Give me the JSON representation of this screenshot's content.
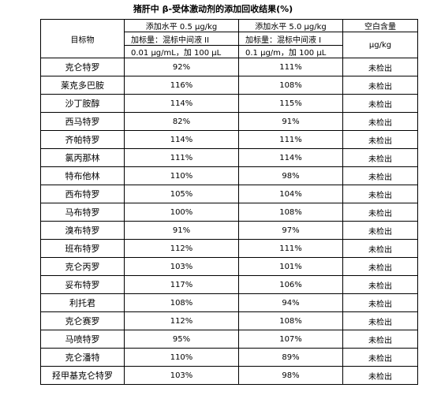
{
  "title": "猪肝中 β-受体激动剂的添加回收结果(%)",
  "header": {
    "target_label": "目标物",
    "group1_level": "添加水平 0.5 μg/kg",
    "group1_spike": "加标量：混标中间液 II",
    "group1_conc": "0.01 μg/mL，加 100 μL",
    "group2_level": "添加水平 5.0 μg/kg",
    "group2_spike": "加标量：混标中间液 I",
    "group2_conc": "0.1 μg/m，加 100 μL",
    "blank_label": "空白含量",
    "blank_unit": "μg/kg"
  },
  "rows": [
    {
      "name": "克仑特罗",
      "r1": "92%",
      "r2": "111%",
      "blank": "未检出"
    },
    {
      "name": "莱克多巴胺",
      "r1": "116%",
      "r2": "108%",
      "blank": "未检出"
    },
    {
      "name": "沙丁胺醇",
      "r1": "114%",
      "r2": "115%",
      "blank": "未检出"
    },
    {
      "name": "西马特罗",
      "r1": "82%",
      "r2": "91%",
      "blank": "未检出"
    },
    {
      "name": "齐帕特罗",
      "r1": "114%",
      "r2": "111%",
      "blank": "未检出"
    },
    {
      "name": "氯丙那林",
      "r1": "111%",
      "r2": "114%",
      "blank": "未检出"
    },
    {
      "name": "特布他林",
      "r1": "110%",
      "r2": "98%",
      "blank": "未检出"
    },
    {
      "name": "西布特罗",
      "r1": "105%",
      "r2": "104%",
      "blank": "未检出"
    },
    {
      "name": "马布特罗",
      "r1": "100%",
      "r2": "108%",
      "blank": "未检出"
    },
    {
      "name": "溴布特罗",
      "r1": "91%",
      "r2": "97%",
      "blank": "未检出"
    },
    {
      "name": "班布特罗",
      "r1": "112%",
      "r2": "111%",
      "blank": "未检出"
    },
    {
      "name": "克仑丙罗",
      "r1": "103%",
      "r2": "101%",
      "blank": "未检出"
    },
    {
      "name": "妥布特罗",
      "r1": "117%",
      "r2": "106%",
      "blank": "未检出"
    },
    {
      "name": "利托君",
      "r1": "108%",
      "r2": "94%",
      "blank": "未检出"
    },
    {
      "name": "克仑赛罗",
      "r1": "112%",
      "r2": "108%",
      "blank": "未检出"
    },
    {
      "name": "马喷特罗",
      "r1": "95%",
      "r2": "107%",
      "blank": "未检出"
    },
    {
      "name": "克仑潘特",
      "r1": "110%",
      "r2": "89%",
      "blank": "未检出"
    },
    {
      "name": "羟甲基克仑特罗",
      "r1": "103%",
      "r2": "98%",
      "blank": "未检出"
    }
  ]
}
